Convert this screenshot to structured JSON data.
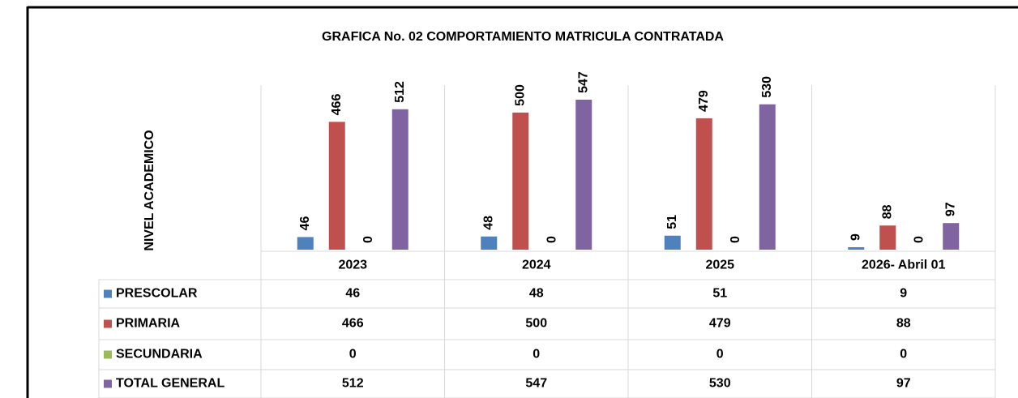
{
  "chart_data": {
    "type": "bar",
    "title": "GRAFICA No. 02 COMPORTAMIENTO MATRICULA CONTRATADA",
    "y_label": "NIVEL ACADEMICO",
    "categories": [
      "2023",
      "2024",
      "2025",
      "2026- Abril 01"
    ],
    "series": [
      {
        "name": "PRESCOLAR",
        "color": "#4f81bd",
        "values": [
          46,
          48,
          51,
          9
        ]
      },
      {
        "name": "PRIMARIA",
        "color": "#c0504d",
        "values": [
          466,
          500,
          479,
          88
        ]
      },
      {
        "name": "SECUNDARIA",
        "color": "#9bbb59",
        "values": [
          0,
          0,
          0,
          0
        ]
      },
      {
        "name": "TOTAL GENERAL",
        "color": "#8064a2",
        "values": [
          512,
          547,
          530,
          97
        ]
      }
    ],
    "ylim": [
      0,
      600
    ]
  }
}
